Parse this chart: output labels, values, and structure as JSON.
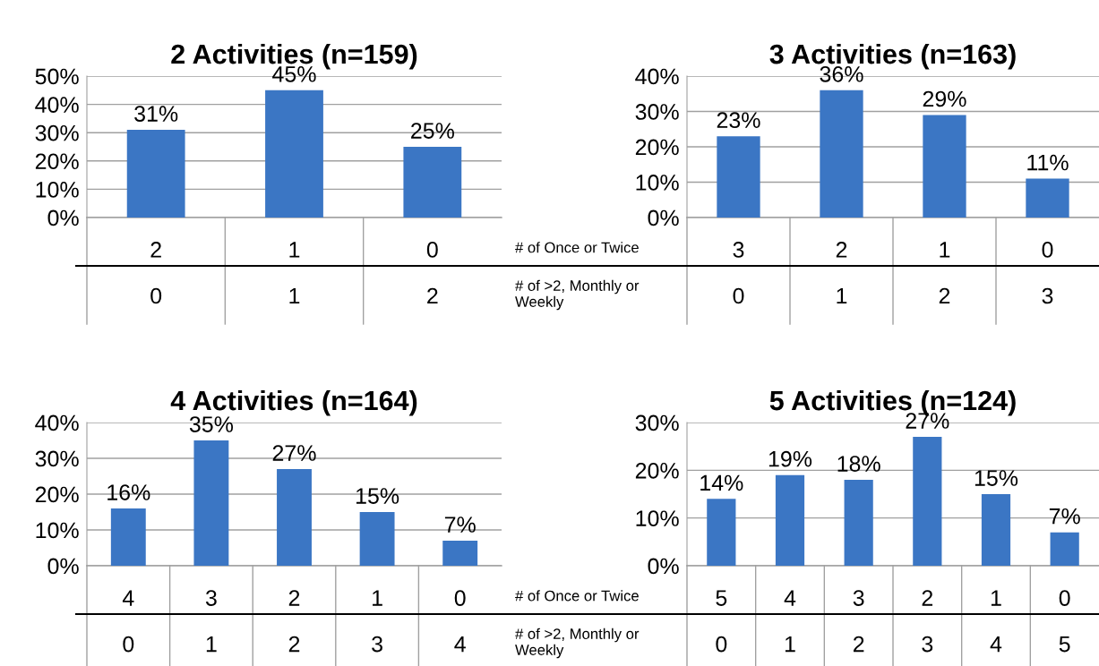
{
  "chart_data": [
    {
      "type": "bar",
      "title": "2 Activities (n=159)",
      "categories": [
        "2\n0",
        "1\n1",
        "0\n2"
      ],
      "values": [
        31,
        45,
        25
      ],
      "value_labels": [
        "31%",
        "45%",
        "25%"
      ],
      "color": "#3b76c4",
      "ylim": [
        0,
        50
      ],
      "yticks": [
        {
          "value": 0,
          "label": "0%"
        },
        {
          "value": 10,
          "label": "10%"
        },
        {
          "value": 20,
          "label": "20%"
        },
        {
          "value": 30,
          "label": "30%"
        },
        {
          "value": 40,
          "label": "40%"
        },
        {
          "value": 50,
          "label": "50%"
        }
      ],
      "grid": "y"
    },
    {
      "type": "bar",
      "title": "3 Activities (n=163)",
      "categories": [
        "3\n0",
        "2\n1",
        "1\n2",
        "0\n3"
      ],
      "values": [
        23,
        36,
        29,
        11
      ],
      "value_labels": [
        "23%",
        "36%",
        "29%",
        "11%"
      ],
      "color": "#3b76c4",
      "ylim": [
        0,
        40
      ],
      "yticks": [
        {
          "value": 0,
          "label": "0%"
        },
        {
          "value": 10,
          "label": "10%"
        },
        {
          "value": 20,
          "label": "20%"
        },
        {
          "value": 30,
          "label": "30%"
        },
        {
          "value": 40,
          "label": "40%"
        }
      ],
      "grid": "y",
      "annotations": [
        "# of Once or Twice",
        "# of >2, Monthly or\nWeekly"
      ]
    },
    {
      "type": "bar",
      "title": "4 Activities (n=164)",
      "categories": [
        "4\n0",
        "3\n1",
        "2\n2",
        "1\n3",
        "0\n4"
      ],
      "values": [
        16,
        35,
        27,
        15,
        7
      ],
      "value_labels": [
        "16%",
        "35%",
        "27%",
        "15%",
        "7%"
      ],
      "color": "#3b76c4",
      "ylim": [
        0,
        40
      ],
      "yticks": [
        {
          "value": 0,
          "label": "0%"
        },
        {
          "value": 10,
          "label": "10%"
        },
        {
          "value": 20,
          "label": "20%"
        },
        {
          "value": 30,
          "label": "30%"
        },
        {
          "value": 40,
          "label": "40%"
        }
      ],
      "grid": "y"
    },
    {
      "type": "bar",
      "title": "5 Activities (n=124)",
      "categories": [
        "5\n0",
        "4\n1",
        "3\n2",
        "2\n3",
        "1\n4",
        "0\n5"
      ],
      "values": [
        14,
        19,
        18,
        27,
        15,
        7
      ],
      "value_labels": [
        "14%",
        "19%",
        "18%",
        "27%",
        "15%",
        "7%"
      ],
      "color": "#3b76c4",
      "ylim": [
        0,
        30
      ],
      "yticks": [
        {
          "value": 0,
          "label": "0%"
        },
        {
          "value": 10,
          "label": "10%"
        },
        {
          "value": 20,
          "label": "20%"
        },
        {
          "value": 30,
          "label": "30%"
        }
      ],
      "grid": "y",
      "annotations": [
        "# of Once or Twice",
        "# of >2, Monthly or\nWeekly"
      ]
    }
  ]
}
